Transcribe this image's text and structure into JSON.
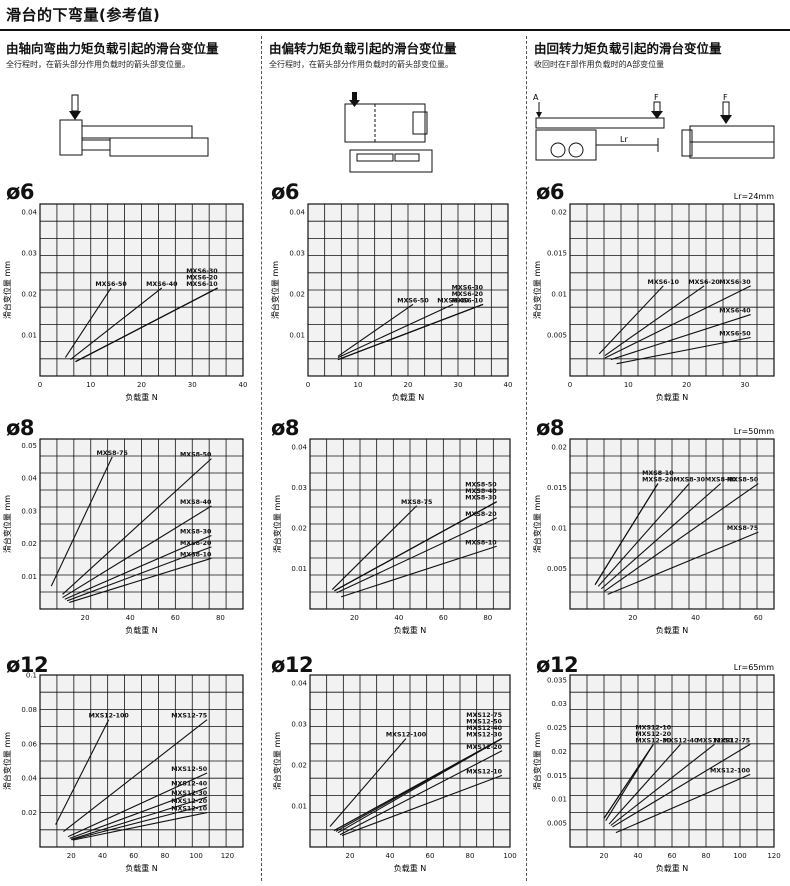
{
  "page": {
    "title": "滑台的下弯量(参考值)"
  },
  "columns": [
    {
      "title": "由轴向弯曲力矩负载引起的滑台变位量",
      "subtitle": "全行程时，在箭头部分作用负载时的箭头部变位量。"
    },
    {
      "title": "由偏转力矩负载引起的滑台变位量",
      "subtitle": "全行程时，在箭头部分作用负载时的箭头部变位量。"
    },
    {
      "title": "由回转力矩负载引起的滑台变位量",
      "subtitle": "收回时在F部作用负载时的A部变位量"
    }
  ],
  "illustration_labels": {
    "a": "A",
    "f": "F",
    "lr": "Lr"
  },
  "sizes": [
    "ø6",
    "ø8",
    "ø12"
  ],
  "chart_data": [
    {
      "type": "line",
      "size": "ø6",
      "column": 1,
      "xlabel": "负载重 N",
      "ylabel": "滑台变位量 mm",
      "xlim": [
        0,
        40
      ],
      "ylim": [
        0,
        0.042
      ],
      "xticks": [
        0,
        10,
        20,
        30,
        40
      ],
      "yticks": [
        0.01,
        0.02,
        0.03,
        0.04
      ],
      "grid": true,
      "lr": "",
      "series": [
        {
          "name": "MXS6-50",
          "x": [
            5,
            14
          ],
          "y": [
            0.0045,
            0.0215
          ]
        },
        {
          "name": "MXS6-40",
          "x": [
            6,
            24
          ],
          "y": [
            0.004,
            0.0215
          ]
        },
        {
          "name": "MXS6-30",
          "x": [
            7,
            35
          ],
          "y": [
            0.0035,
            0.0215
          ]
        },
        {
          "name": "MXS6-20",
          "x": [
            7,
            35
          ],
          "y": [
            0.0035,
            0.0215
          ]
        },
        {
          "name": "MXS6-10",
          "x": [
            7,
            35
          ],
          "y": [
            0.0035,
            0.0215
          ]
        }
      ]
    },
    {
      "type": "line",
      "size": "ø6",
      "column": 2,
      "xlabel": "负载重 N",
      "ylabel": "滑台变位量 mm",
      "xlim": [
        0,
        40
      ],
      "ylim": [
        0,
        0.042
      ],
      "xticks": [
        0,
        10,
        20,
        30,
        40
      ],
      "yticks": [
        0.01,
        0.02,
        0.03,
        0.04
      ],
      "grid": true,
      "lr": "",
      "series": [
        {
          "name": "MXS6-50",
          "x": [
            6,
            21
          ],
          "y": [
            0.0048,
            0.0175
          ]
        },
        {
          "name": "MXS6-40",
          "x": [
            6,
            29
          ],
          "y": [
            0.0045,
            0.0175
          ]
        },
        {
          "name": "MXS6-30",
          "x": [
            6,
            35
          ],
          "y": [
            0.004,
            0.0175
          ]
        },
        {
          "name": "MXS6-20",
          "x": [
            6,
            35
          ],
          "y": [
            0.004,
            0.0175
          ]
        },
        {
          "name": "MXS6-10",
          "x": [
            6,
            35
          ],
          "y": [
            0.004,
            0.0175
          ]
        }
      ]
    },
    {
      "type": "line",
      "size": "ø6",
      "column": 3,
      "xlabel": "负载重 N",
      "ylabel": "滑台变位量 mm",
      "xlim": [
        0,
        35
      ],
      "ylim": [
        0,
        0.021
      ],
      "xticks": [
        0,
        10,
        20,
        30
      ],
      "yticks": [
        0.005,
        0.01,
        0.015,
        0.02
      ],
      "grid": true,
      "lr": "Lr=24mm",
      "series": [
        {
          "name": "MXS6-10",
          "x": [
            5,
            16
          ],
          "y": [
            0.0027,
            0.011
          ]
        },
        {
          "name": "MXS6-20",
          "x": [
            6,
            23
          ],
          "y": [
            0.0025,
            0.011
          ]
        },
        {
          "name": "MXS6-30",
          "x": [
            6,
            31
          ],
          "y": [
            0.0022,
            0.011
          ]
        },
        {
          "name": "MXS6-40",
          "x": [
            7,
            31
          ],
          "y": [
            0.002,
            0.0075
          ]
        },
        {
          "name": "MXS6-50",
          "x": [
            8,
            31
          ],
          "y": [
            0.0015,
            0.0047
          ]
        }
      ]
    },
    {
      "type": "line",
      "size": "ø8",
      "column": 1,
      "xlabel": "负载重 N",
      "ylabel": "滑台变位量 mm",
      "xlim": [
        0,
        90
      ],
      "ylim": [
        0,
        0.052
      ],
      "xticks": [
        20,
        40,
        60,
        80
      ],
      "yticks": [
        0.01,
        0.02,
        0.03,
        0.04,
        0.05
      ],
      "grid": true,
      "lr": "",
      "series": [
        {
          "name": "MXS8-75",
          "x": [
            5,
            32
          ],
          "y": [
            0.007,
            0.0465
          ]
        },
        {
          "name": "MXS8-50",
          "x": [
            10,
            76
          ],
          "y": [
            0.0045,
            0.046
          ]
        },
        {
          "name": "MXS8-40",
          "x": [
            10,
            76
          ],
          "y": [
            0.0035,
            0.0315
          ]
        },
        {
          "name": "MXS8-30",
          "x": [
            11,
            76
          ],
          "y": [
            0.003,
            0.0225
          ]
        },
        {
          "name": "MXS8-20",
          "x": [
            12,
            76
          ],
          "y": [
            0.0025,
            0.019
          ]
        },
        {
          "name": "MXS8-10",
          "x": [
            13,
            76
          ],
          "y": [
            0.002,
            0.0155
          ]
        }
      ]
    },
    {
      "type": "line",
      "size": "ø8",
      "column": 2,
      "xlabel": "负载重 N",
      "ylabel": "滑台变位量 mm",
      "xlim": [
        0,
        90
      ],
      "ylim": [
        0,
        0.042
      ],
      "xticks": [
        20,
        40,
        60,
        80
      ],
      "yticks": [
        0.01,
        0.02,
        0.03,
        0.04
      ],
      "grid": true,
      "lr": "",
      "series": [
        {
          "name": "MXS8-75",
          "x": [
            10,
            48
          ],
          "y": [
            0.0048,
            0.0255
          ]
        },
        {
          "name": "MXS8-50",
          "x": [
            11,
            84
          ],
          "y": [
            0.0045,
            0.0265
          ]
        },
        {
          "name": "MXS8-40",
          "x": [
            11,
            84
          ],
          "y": [
            0.0045,
            0.0265
          ]
        },
        {
          "name": "MXS8-30",
          "x": [
            11,
            84
          ],
          "y": [
            0.0045,
            0.0265
          ]
        },
        {
          "name": "MXS8-20",
          "x": [
            12,
            84
          ],
          "y": [
            0.004,
            0.0225
          ]
        },
        {
          "name": "MXS8-10",
          "x": [
            14,
            84
          ],
          "y": [
            0.003,
            0.0155
          ]
        }
      ]
    },
    {
      "type": "line",
      "size": "ø8",
      "column": 3,
      "xlabel": "负载重 N",
      "ylabel": "滑台变位量 mm",
      "xlim": [
        0,
        65
      ],
      "ylim": [
        0,
        0.021
      ],
      "xticks": [
        20,
        40,
        60
      ],
      "yticks": [
        0.005,
        0.01,
        0.015,
        0.02
      ],
      "grid": true,
      "lr": "Lr=50mm",
      "series": [
        {
          "name": "MXS8-10",
          "x": [
            8,
            28
          ],
          "y": [
            0.003,
            0.0155
          ]
        },
        {
          "name": "MXS8-20",
          "x": [
            8,
            28
          ],
          "y": [
            0.003,
            0.0155
          ]
        },
        {
          "name": "MXS8-30",
          "x": [
            9,
            38
          ],
          "y": [
            0.0028,
            0.0155
          ]
        },
        {
          "name": "MXS8-40",
          "x": [
            10,
            48
          ],
          "y": [
            0.0025,
            0.0155
          ]
        },
        {
          "name": "MXS8-50",
          "x": [
            11,
            60
          ],
          "y": [
            0.0022,
            0.0155
          ]
        },
        {
          "name": "MXS8-75",
          "x": [
            12,
            60
          ],
          "y": [
            0.0018,
            0.0095
          ]
        }
      ]
    },
    {
      "type": "line",
      "size": "ø12",
      "column": 1,
      "xlabel": "负载重 N",
      "ylabel": "滑台变位量 mm",
      "xlim": [
        0,
        130
      ],
      "ylim": [
        0,
        0.1
      ],
      "xticks": [
        20,
        40,
        60,
        80,
        100,
        120
      ],
      "yticks": [
        0.02,
        0.04,
        0.06,
        0.08,
        0.1
      ],
      "grid": true,
      "lr": "",
      "series": [
        {
          "name": "MXS12-100",
          "x": [
            10,
            44
          ],
          "y": [
            0.013,
            0.074
          ]
        },
        {
          "name": "MXS12-75",
          "x": [
            15,
            107
          ],
          "y": [
            0.009,
            0.074
          ]
        },
        {
          "name": "MXS12-50",
          "x": [
            18,
            107
          ],
          "y": [
            0.006,
            0.043
          ]
        },
        {
          "name": "MXS12-40",
          "x": [
            19,
            107
          ],
          "y": [
            0.005,
            0.0345
          ]
        },
        {
          "name": "MXS12-30",
          "x": [
            20,
            107
          ],
          "y": [
            0.0045,
            0.029
          ]
        },
        {
          "name": "MXS12-20",
          "x": [
            20,
            107
          ],
          "y": [
            0.0042,
            0.0245
          ]
        },
        {
          "name": "MXS12-10",
          "x": [
            21,
            107
          ],
          "y": [
            0.004,
            0.02
          ]
        }
      ]
    },
    {
      "type": "line",
      "size": "ø12",
      "column": 2,
      "xlabel": "负载重 N",
      "ylabel": "滑台变位量 mm",
      "xlim": [
        0,
        100
      ],
      "ylim": [
        0,
        0.042
      ],
      "xticks": [
        20,
        40,
        60,
        80,
        100
      ],
      "yticks": [
        0.01,
        0.02,
        0.03,
        0.04
      ],
      "grid": true,
      "lr": "",
      "series": [
        {
          "name": "MXS12-100",
          "x": [
            10,
            48
          ],
          "y": [
            0.005,
            0.0265
          ]
        },
        {
          "name": "MXS12-75",
          "x": [
            12,
            96
          ],
          "y": [
            0.004,
            0.0265
          ]
        },
        {
          "name": "MXS12-50",
          "x": [
            12,
            96
          ],
          "y": [
            0.004,
            0.0265
          ]
        },
        {
          "name": "MXS12-40",
          "x": [
            13,
            96
          ],
          "y": [
            0.0038,
            0.0265
          ]
        },
        {
          "name": "MXS12-30",
          "x": [
            14,
            96
          ],
          "y": [
            0.0035,
            0.0265
          ]
        },
        {
          "name": "MXS12-20",
          "x": [
            15,
            96
          ],
          "y": [
            0.003,
            0.0235
          ]
        },
        {
          "name": "MXS12-10",
          "x": [
            16,
            96
          ],
          "y": [
            0.0028,
            0.0175
          ]
        }
      ]
    },
    {
      "type": "line",
      "size": "ø12",
      "column": 3,
      "xlabel": "负载重 N",
      "ylabel": "滑台变位量 mm",
      "xlim": [
        0,
        120
      ],
      "ylim": [
        0,
        0.036
      ],
      "xticks": [
        20,
        40,
        60,
        80,
        100,
        120
      ],
      "yticks": [
        0.005,
        0.01,
        0.015,
        0.02,
        0.025,
        0.03,
        0.035
      ],
      "grid": true,
      "lr": "Lr=65mm",
      "series": [
        {
          "name": "MXS12-10",
          "x": [
            20,
            49
          ],
          "y": [
            0.006,
            0.0215
          ]
        },
        {
          "name": "MXS12-20",
          "x": [
            20,
            49
          ],
          "y": [
            0.006,
            0.0215
          ]
        },
        {
          "name": "MXS12-30",
          "x": [
            21,
            49
          ],
          "y": [
            0.0055,
            0.0215
          ]
        },
        {
          "name": "MXS12-40",
          "x": [
            23,
            65
          ],
          "y": [
            0.0048,
            0.0215
          ]
        },
        {
          "name": "MXS12-50",
          "x": [
            24,
            85
          ],
          "y": [
            0.0045,
            0.0215
          ]
        },
        {
          "name": "MXS12-75",
          "x": [
            25,
            106
          ],
          "y": [
            0.0042,
            0.0215
          ]
        },
        {
          "name": "MXS12-100",
          "x": [
            27,
            106
          ],
          "y": [
            0.003,
            0.0152
          ]
        }
      ]
    }
  ]
}
